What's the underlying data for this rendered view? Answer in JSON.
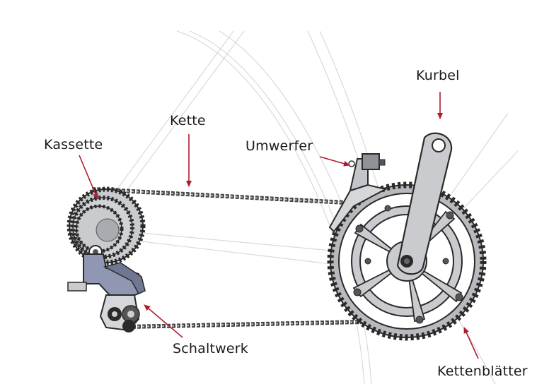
{
  "labels": {
    "kurbel": "Kurbel",
    "kette": "Kette",
    "kassette": "Kassette",
    "umwerfer": "Umwerfer",
    "schaltwerk": "Schaltwerk",
    "kettenblaetter": "Kettenblätter"
  },
  "colors": {
    "arrow": "#b01c2e",
    "metal": "#c9cbcf",
    "metal_dark": "#8f9297",
    "outline": "#2a2a2a",
    "derailleur_body": "#8f97b2",
    "frame_lines": "#d9d9d9"
  }
}
